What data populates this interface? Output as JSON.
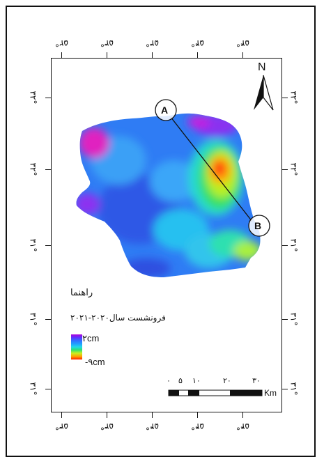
{
  "map": {
    "north_label": "N",
    "point_a": "A",
    "point_b": "B",
    "top_ticks": [
      "۵۲°",
      "۵۳°",
      "۵۳°",
      "۵۴°",
      "۵۴°"
    ],
    "bottom_ticks": [
      "۵۳°",
      "۵۳°",
      "۵۴°",
      "۵۴°",
      "۵۴°"
    ],
    "left_ticks": [
      "۳۲°",
      "۳۲°",
      "۳۱°",
      "۳۱°",
      "۳۱°"
    ],
    "right_ticks": [
      "۳۲°",
      "۳۲°",
      "۳۱°",
      "۳۱°",
      "۳۱°"
    ]
  },
  "legend": {
    "title": "راهنما",
    "subtitle": "فرونشست سال۲۰۲۰-۲۰۲۱",
    "max_label": "۲cm",
    "min_label": "-۹cm",
    "colors": [
      "#b000d8",
      "#3070ff",
      "#20d8e8",
      "#30e070",
      "#c8f020",
      "#ffa000",
      "#ff2000"
    ]
  },
  "scale_bar": {
    "ticks": [
      "۰",
      "۵",
      "۱۰",
      "۲۰",
      "۳۰"
    ],
    "unit": "Km"
  }
}
